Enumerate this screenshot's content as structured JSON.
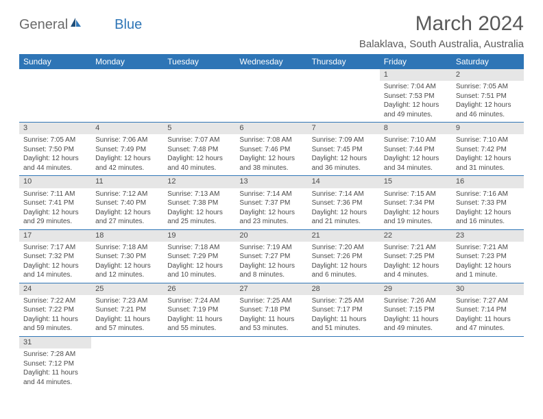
{
  "logo": {
    "textA": "General",
    "textB": "Blue"
  },
  "title": "March 2024",
  "location": "Balaklava, South Australia, Australia",
  "header_bg": "#2e75b6",
  "daynum_bg": "#e6e6e6",
  "border_color": "#2e75b6",
  "dayHeaders": [
    "Sunday",
    "Monday",
    "Tuesday",
    "Wednesday",
    "Thursday",
    "Friday",
    "Saturday"
  ],
  "weeks": [
    [
      null,
      null,
      null,
      null,
      null,
      {
        "n": "1",
        "sr": "Sunrise: 7:04 AM",
        "ss": "Sunset: 7:53 PM",
        "dl": "Daylight: 12 hours and 49 minutes."
      },
      {
        "n": "2",
        "sr": "Sunrise: 7:05 AM",
        "ss": "Sunset: 7:51 PM",
        "dl": "Daylight: 12 hours and 46 minutes."
      }
    ],
    [
      {
        "n": "3",
        "sr": "Sunrise: 7:05 AM",
        "ss": "Sunset: 7:50 PM",
        "dl": "Daylight: 12 hours and 44 minutes."
      },
      {
        "n": "4",
        "sr": "Sunrise: 7:06 AM",
        "ss": "Sunset: 7:49 PM",
        "dl": "Daylight: 12 hours and 42 minutes."
      },
      {
        "n": "5",
        "sr": "Sunrise: 7:07 AM",
        "ss": "Sunset: 7:48 PM",
        "dl": "Daylight: 12 hours and 40 minutes."
      },
      {
        "n": "6",
        "sr": "Sunrise: 7:08 AM",
        "ss": "Sunset: 7:46 PM",
        "dl": "Daylight: 12 hours and 38 minutes."
      },
      {
        "n": "7",
        "sr": "Sunrise: 7:09 AM",
        "ss": "Sunset: 7:45 PM",
        "dl": "Daylight: 12 hours and 36 minutes."
      },
      {
        "n": "8",
        "sr": "Sunrise: 7:10 AM",
        "ss": "Sunset: 7:44 PM",
        "dl": "Daylight: 12 hours and 34 minutes."
      },
      {
        "n": "9",
        "sr": "Sunrise: 7:10 AM",
        "ss": "Sunset: 7:42 PM",
        "dl": "Daylight: 12 hours and 31 minutes."
      }
    ],
    [
      {
        "n": "10",
        "sr": "Sunrise: 7:11 AM",
        "ss": "Sunset: 7:41 PM",
        "dl": "Daylight: 12 hours and 29 minutes."
      },
      {
        "n": "11",
        "sr": "Sunrise: 7:12 AM",
        "ss": "Sunset: 7:40 PM",
        "dl": "Daylight: 12 hours and 27 minutes."
      },
      {
        "n": "12",
        "sr": "Sunrise: 7:13 AM",
        "ss": "Sunset: 7:38 PM",
        "dl": "Daylight: 12 hours and 25 minutes."
      },
      {
        "n": "13",
        "sr": "Sunrise: 7:14 AM",
        "ss": "Sunset: 7:37 PM",
        "dl": "Daylight: 12 hours and 23 minutes."
      },
      {
        "n": "14",
        "sr": "Sunrise: 7:14 AM",
        "ss": "Sunset: 7:36 PM",
        "dl": "Daylight: 12 hours and 21 minutes."
      },
      {
        "n": "15",
        "sr": "Sunrise: 7:15 AM",
        "ss": "Sunset: 7:34 PM",
        "dl": "Daylight: 12 hours and 19 minutes."
      },
      {
        "n": "16",
        "sr": "Sunrise: 7:16 AM",
        "ss": "Sunset: 7:33 PM",
        "dl": "Daylight: 12 hours and 16 minutes."
      }
    ],
    [
      {
        "n": "17",
        "sr": "Sunrise: 7:17 AM",
        "ss": "Sunset: 7:32 PM",
        "dl": "Daylight: 12 hours and 14 minutes."
      },
      {
        "n": "18",
        "sr": "Sunrise: 7:18 AM",
        "ss": "Sunset: 7:30 PM",
        "dl": "Daylight: 12 hours and 12 minutes."
      },
      {
        "n": "19",
        "sr": "Sunrise: 7:18 AM",
        "ss": "Sunset: 7:29 PM",
        "dl": "Daylight: 12 hours and 10 minutes."
      },
      {
        "n": "20",
        "sr": "Sunrise: 7:19 AM",
        "ss": "Sunset: 7:27 PM",
        "dl": "Daylight: 12 hours and 8 minutes."
      },
      {
        "n": "21",
        "sr": "Sunrise: 7:20 AM",
        "ss": "Sunset: 7:26 PM",
        "dl": "Daylight: 12 hours and 6 minutes."
      },
      {
        "n": "22",
        "sr": "Sunrise: 7:21 AM",
        "ss": "Sunset: 7:25 PM",
        "dl": "Daylight: 12 hours and 4 minutes."
      },
      {
        "n": "23",
        "sr": "Sunrise: 7:21 AM",
        "ss": "Sunset: 7:23 PM",
        "dl": "Daylight: 12 hours and 1 minute."
      }
    ],
    [
      {
        "n": "24",
        "sr": "Sunrise: 7:22 AM",
        "ss": "Sunset: 7:22 PM",
        "dl": "Daylight: 11 hours and 59 minutes."
      },
      {
        "n": "25",
        "sr": "Sunrise: 7:23 AM",
        "ss": "Sunset: 7:21 PM",
        "dl": "Daylight: 11 hours and 57 minutes."
      },
      {
        "n": "26",
        "sr": "Sunrise: 7:24 AM",
        "ss": "Sunset: 7:19 PM",
        "dl": "Daylight: 11 hours and 55 minutes."
      },
      {
        "n": "27",
        "sr": "Sunrise: 7:25 AM",
        "ss": "Sunset: 7:18 PM",
        "dl": "Daylight: 11 hours and 53 minutes."
      },
      {
        "n": "28",
        "sr": "Sunrise: 7:25 AM",
        "ss": "Sunset: 7:17 PM",
        "dl": "Daylight: 11 hours and 51 minutes."
      },
      {
        "n": "29",
        "sr": "Sunrise: 7:26 AM",
        "ss": "Sunset: 7:15 PM",
        "dl": "Daylight: 11 hours and 49 minutes."
      },
      {
        "n": "30",
        "sr": "Sunrise: 7:27 AM",
        "ss": "Sunset: 7:14 PM",
        "dl": "Daylight: 11 hours and 47 minutes."
      }
    ],
    [
      {
        "n": "31",
        "sr": "Sunrise: 7:28 AM",
        "ss": "Sunset: 7:12 PM",
        "dl": "Daylight: 11 hours and 44 minutes."
      },
      null,
      null,
      null,
      null,
      null,
      null
    ]
  ]
}
